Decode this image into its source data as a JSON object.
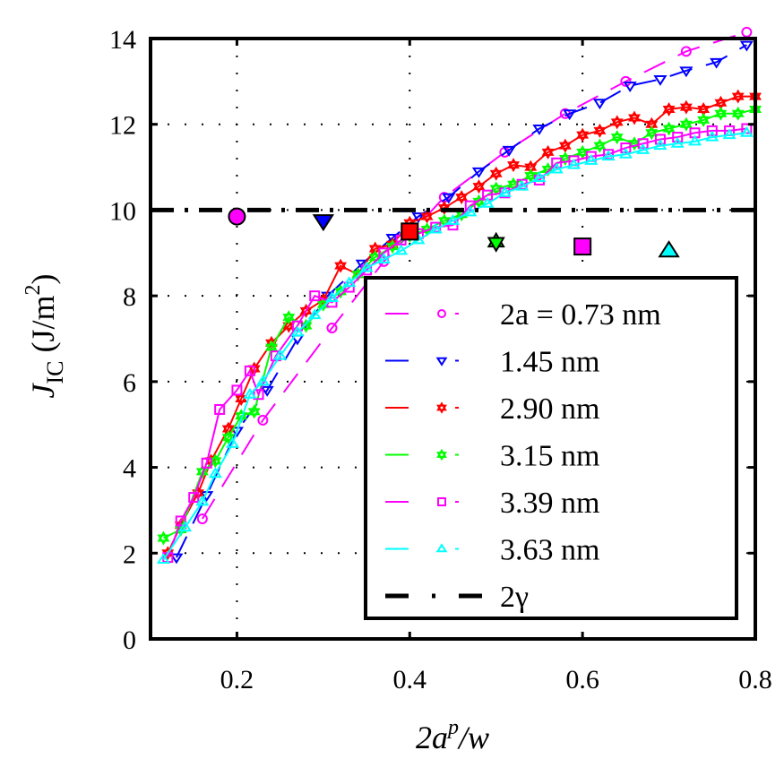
{
  "chart_data": {
    "type": "line",
    "title": "",
    "xlabel": "2a^p/w",
    "xlabel_parts": {
      "base": "2a",
      "sup": "p",
      "rest": "/w"
    },
    "ylabel": "J_IC (J/m^2)",
    "ylabel_parts": {
      "J": "J",
      "sub": "IC",
      "unit_open": " (J/m",
      "unit_sup": "2",
      "unit_close": ")"
    },
    "xlim": [
      0.1,
      0.8
    ],
    "ylim": [
      0,
      14
    ],
    "xticks": [
      0.2,
      0.4,
      0.6,
      0.8
    ],
    "xtick_labels": [
      "0.2",
      "0.4",
      "0.6",
      "0.8"
    ],
    "yticks": [
      0,
      2,
      4,
      6,
      8,
      10,
      12,
      14
    ],
    "ytick_labels": [
      "0",
      "2",
      "4",
      "6",
      "8",
      "10",
      "12",
      "14"
    ],
    "grid": true,
    "legend_position": "bottom-right",
    "series": [
      {
        "name": "2a = 0.73 nm",
        "legend_label": "2a = 0.73 nm",
        "color": "#ff00ff",
        "marker": "circle",
        "line": "dashed",
        "x": [
          0.16,
          0.23,
          0.31,
          0.37,
          0.44,
          0.51,
          0.58,
          0.65,
          0.72,
          0.79
        ],
        "y": [
          2.8,
          5.1,
          7.25,
          8.8,
          10.3,
          11.35,
          12.25,
          13.0,
          13.7,
          14.15
        ]
      },
      {
        "name": "1.45 nm",
        "legend_label": "1.45 nm",
        "color": "#0000ff",
        "marker": "triangle-down",
        "line": "dashed",
        "x": [
          0.13,
          0.165,
          0.2,
          0.235,
          0.27,
          0.305,
          0.345,
          0.38,
          0.41,
          0.445,
          0.48,
          0.515,
          0.55,
          0.585,
          0.62,
          0.655,
          0.69,
          0.72,
          0.755,
          0.79
        ],
        "y": [
          1.9,
          3.35,
          4.85,
          5.8,
          7.0,
          8.0,
          8.75,
          9.35,
          9.85,
          10.3,
          10.9,
          11.4,
          11.9,
          12.25,
          12.5,
          12.9,
          13.05,
          13.25,
          13.45,
          13.85
        ]
      },
      {
        "name": "2.90 nm",
        "legend_label": "2.90 nm",
        "color": "#ff0000",
        "marker": "hexagram",
        "line": "solid",
        "x": [
          0.12,
          0.135,
          0.155,
          0.17,
          0.19,
          0.205,
          0.22,
          0.24,
          0.26,
          0.28,
          0.3,
          0.32,
          0.34,
          0.36,
          0.38,
          0.4,
          0.42,
          0.44,
          0.46,
          0.48,
          0.5,
          0.52,
          0.54,
          0.56,
          0.58,
          0.6,
          0.62,
          0.64,
          0.66,
          0.68,
          0.7,
          0.72,
          0.74,
          0.76,
          0.78,
          0.8
        ],
        "y": [
          2.0,
          2.65,
          3.4,
          4.15,
          4.9,
          5.6,
          6.3,
          6.9,
          7.3,
          7.65,
          7.9,
          8.7,
          8.5,
          9.1,
          9.2,
          9.7,
          9.85,
          10.05,
          10.3,
          10.55,
          10.85,
          11.05,
          11.0,
          11.35,
          11.5,
          11.75,
          11.85,
          12.05,
          12.15,
          12.0,
          12.35,
          12.4,
          12.35,
          12.5,
          12.65,
          12.65
        ]
      },
      {
        "name": "3.15 nm",
        "legend_label": "3.15 nm",
        "color": "#00ff00",
        "marker": "hexagram",
        "line": "solid",
        "x": [
          0.115,
          0.135,
          0.16,
          0.175,
          0.19,
          0.205,
          0.22,
          0.24,
          0.26,
          0.28,
          0.3,
          0.32,
          0.34,
          0.36,
          0.38,
          0.4,
          0.42,
          0.44,
          0.46,
          0.48,
          0.5,
          0.52,
          0.54,
          0.56,
          0.58,
          0.6,
          0.62,
          0.64,
          0.66,
          0.68,
          0.7,
          0.72,
          0.74,
          0.76,
          0.78,
          0.8
        ],
        "y": [
          2.35,
          2.55,
          3.9,
          4.15,
          4.7,
          5.2,
          5.3,
          6.8,
          7.5,
          7.3,
          7.8,
          8.1,
          8.5,
          8.9,
          9.15,
          9.4,
          9.55,
          9.75,
          9.9,
          10.2,
          10.5,
          10.6,
          10.8,
          10.95,
          11.2,
          11.35,
          11.5,
          11.7,
          11.55,
          11.8,
          11.9,
          12.0,
          12.1,
          12.25,
          12.25,
          12.35
        ]
      },
      {
        "name": "3.39 nm",
        "legend_label": "3.39 nm",
        "color": "#ff00ff",
        "marker": "square",
        "line": "solid",
        "x": [
          0.12,
          0.135,
          0.15,
          0.165,
          0.18,
          0.2,
          0.215,
          0.225,
          0.245,
          0.27,
          0.29,
          0.31,
          0.33,
          0.35,
          0.37,
          0.39,
          0.41,
          0.43,
          0.45,
          0.47,
          0.49,
          0.51,
          0.53,
          0.55,
          0.57,
          0.59,
          0.61,
          0.63,
          0.65,
          0.67,
          0.69,
          0.71,
          0.73,
          0.75,
          0.77,
          0.79
        ],
        "y": [
          1.9,
          2.75,
          3.3,
          4.1,
          5.35,
          5.8,
          6.25,
          5.7,
          6.6,
          7.3,
          8.0,
          7.85,
          8.2,
          8.6,
          9.0,
          9.3,
          9.45,
          9.6,
          9.65,
          10.1,
          10.35,
          10.4,
          10.6,
          10.7,
          11.1,
          11.15,
          11.25,
          11.3,
          11.45,
          11.55,
          11.65,
          11.7,
          11.8,
          11.85,
          11.85,
          11.9
        ]
      },
      {
        "name": "3.63 nm",
        "legend_label": "3.63 nm",
        "color": "#00ffff",
        "marker": "triangle-up",
        "line": "solid",
        "x": [
          0.115,
          0.14,
          0.16,
          0.175,
          0.195,
          0.215,
          0.23,
          0.25,
          0.27,
          0.29,
          0.31,
          0.33,
          0.35,
          0.37,
          0.39,
          0.41,
          0.43,
          0.45,
          0.47,
          0.49,
          0.51,
          0.53,
          0.55,
          0.57,
          0.59,
          0.61,
          0.63,
          0.65,
          0.67,
          0.69,
          0.71,
          0.73,
          0.75,
          0.77,
          0.79
        ],
        "y": [
          1.85,
          2.6,
          3.2,
          3.85,
          4.55,
          5.7,
          6.0,
          6.6,
          7.15,
          7.55,
          7.95,
          8.3,
          8.65,
          8.85,
          9.05,
          9.3,
          9.55,
          9.75,
          9.95,
          10.15,
          10.4,
          10.55,
          10.75,
          10.95,
          11.05,
          11.15,
          11.25,
          11.3,
          11.4,
          11.5,
          11.55,
          11.6,
          11.7,
          11.75,
          11.8
        ]
      },
      {
        "name": "2γ",
        "legend_label": "2γ",
        "color": "#000000",
        "marker": "none",
        "line": "dash-dot",
        "x": [
          0.1,
          0.8
        ],
        "y": [
          10.0,
          10.0
        ]
      }
    ],
    "reference_markers": [
      {
        "series": "2a = 0.73 nm",
        "x": 0.2,
        "y": 9.85,
        "marker": "circle",
        "color": "#ff00ff"
      },
      {
        "series": "1.45 nm",
        "x": 0.3,
        "y": 9.75,
        "marker": "triangle-down",
        "color": "#0000ff"
      },
      {
        "series": "2.90 nm",
        "x": 0.4,
        "y": 9.5,
        "marker": "square",
        "color": "#ff0000"
      },
      {
        "series": "3.15 nm",
        "x": 0.5,
        "y": 9.25,
        "marker": "hexagram",
        "color": "#00ff00"
      },
      {
        "series": "3.39 nm",
        "x": 0.6,
        "y": 9.15,
        "marker": "square",
        "color": "#ff00ff"
      },
      {
        "series": "3.63 nm",
        "x": 0.7,
        "y": 9.05,
        "marker": "triangle-up",
        "color": "#00ffff"
      }
    ]
  }
}
